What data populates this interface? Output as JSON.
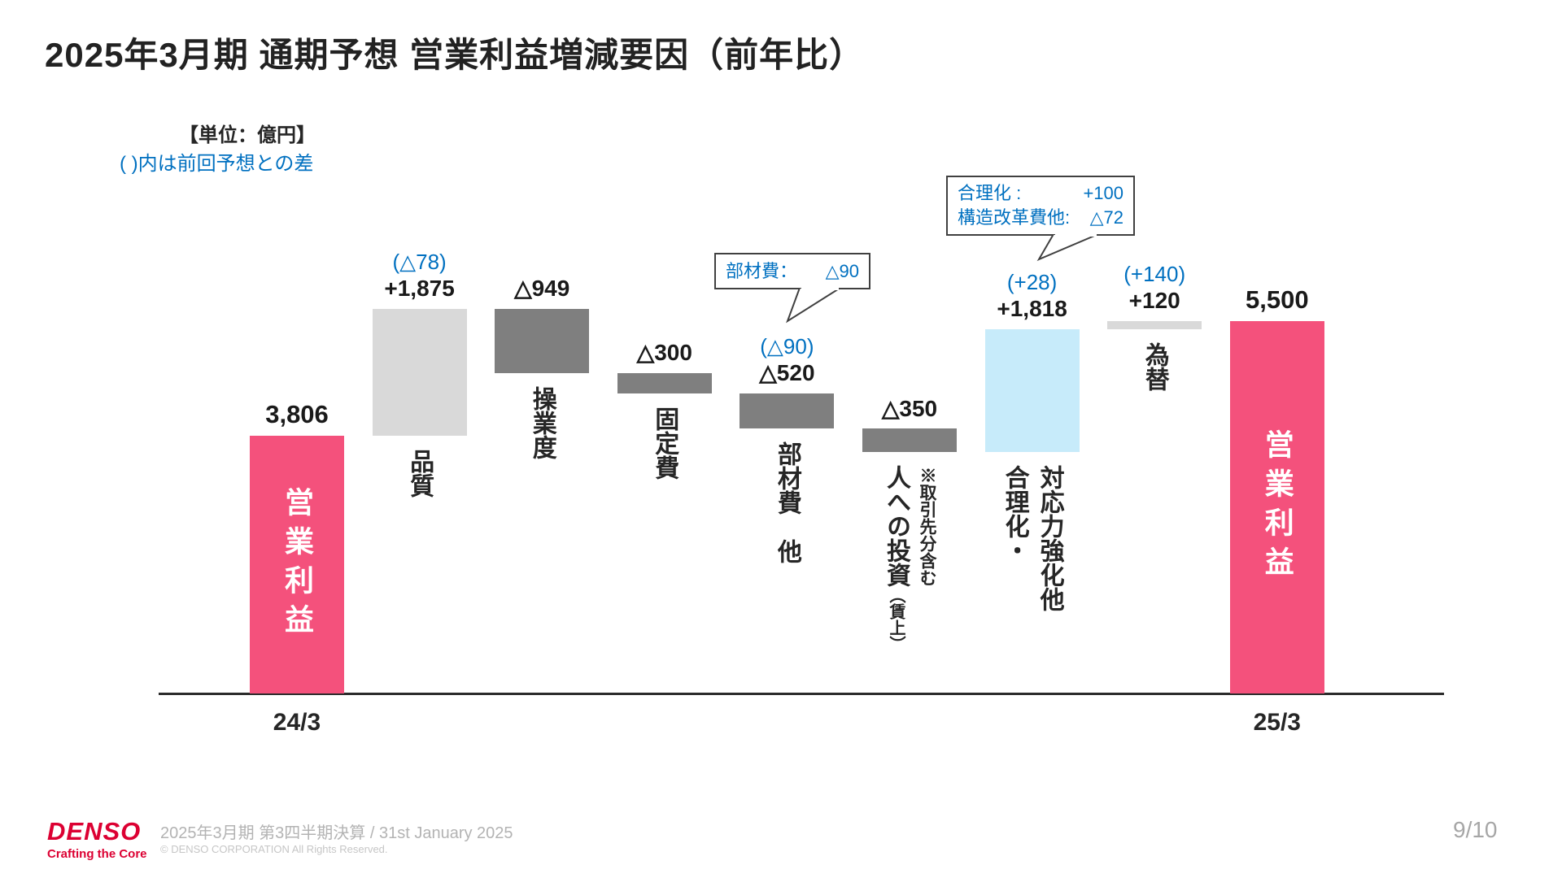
{
  "header": {
    "title": "2025年3月期 通期予想 営業利益増減要因（前年比）"
  },
  "notes": {
    "unit": "【単位：億円】",
    "legend": "( )内は前回予想との差"
  },
  "colors": {
    "pink": "#F4517C",
    "gray": "#7F7F7F",
    "lightgray": "#D9D9D9",
    "lightblue": "#C7EBFA",
    "blue_text": "#0070C0",
    "denso_red": "#DC0032"
  },
  "chart_data": {
    "type": "waterfall",
    "title": "2025年3月期 通期予想 営業利益増減要因（前年比）",
    "unit": "億円",
    "baseline": 0,
    "x_axis_labels": [
      "24/3",
      "25/3"
    ],
    "bars": [
      {
        "id": "operating-profit-24",
        "type": "total",
        "value": 3806,
        "value_label": "3,806",
        "color": "pink",
        "in_bar_label": "営業利益",
        "axis_label": "24/3"
      },
      {
        "id": "quality",
        "type": "delta",
        "value": 1875,
        "value_label": "+1,875",
        "diff_label": "(△78)",
        "color": "lightgray",
        "below_columns": [
          {
            "text": "品質"
          }
        ]
      },
      {
        "id": "utilization",
        "type": "delta",
        "value": -949,
        "value_label": "△949",
        "color": "gray",
        "below_columns": [
          {
            "text": "操業度"
          }
        ]
      },
      {
        "id": "fixed-costs",
        "type": "delta",
        "value": -300,
        "value_label": "△300",
        "color": "gray",
        "below_columns": [
          {
            "text": "固定費"
          }
        ]
      },
      {
        "id": "materials-cost-etc",
        "type": "delta",
        "value": -520,
        "value_label": "△520",
        "diff_label": "(△90)",
        "color": "gray",
        "below_columns": [
          {
            "text": "部材費　他"
          }
        ]
      },
      {
        "id": "investment-in-people",
        "type": "delta",
        "value": -350,
        "value_label": "△350",
        "color": "gray",
        "below_columns": [
          {
            "text": "人への投資",
            "sub": "（賃上）"
          },
          {
            "text": "※取引先分含む",
            "note": true
          }
        ]
      },
      {
        "id": "responsiveness-rationalization",
        "type": "delta",
        "value": 1818,
        "value_label": "+1,818",
        "diff_label": "(+28)",
        "color": "lightblue",
        "label": "対応力強化・合理化他",
        "below_columns": [
          {
            "text": "合理化・"
          },
          {
            "text": "対応力強化他"
          }
        ]
      },
      {
        "id": "forex",
        "type": "delta",
        "value": 120,
        "value_label": "+120",
        "diff_label": "(+140)",
        "color": "lightgray",
        "below_columns": [
          {
            "text": "為替"
          }
        ]
      },
      {
        "id": "operating-profit-25",
        "type": "total",
        "value": 5500,
        "value_label": "5,500",
        "color": "pink",
        "in_bar_label": "営業利益",
        "axis_label": "25/3"
      }
    ],
    "annotations": {
      "materials": {
        "label": "部材費：",
        "value": "△90"
      },
      "rationalization": {
        "line1_label": "合理化 :",
        "line1_value": "+100",
        "line2_label": "構造改革費他:",
        "line2_value": "△72"
      }
    }
  },
  "footer": {
    "logo": "DENSO",
    "tagline": "Crafting the Core",
    "event": "2025年3月期 第3四半期決算 / 31st January 2025",
    "copyright": "© DENSO CORPORATION All Rights Reserved.",
    "page": "9/10"
  }
}
